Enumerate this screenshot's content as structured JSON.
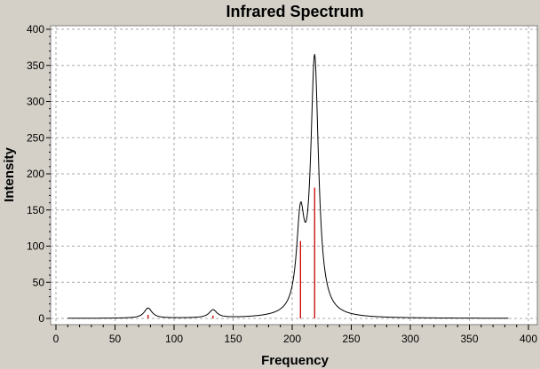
{
  "chart_data": {
    "type": "line",
    "title": "Infrared Spectrum",
    "xlabel": "Frequency",
    "ylabel": "Intensity",
    "xlim": [
      0,
      400
    ],
    "ylim": [
      0,
      400
    ],
    "xticks": [
      0,
      50,
      100,
      150,
      200,
      250,
      300,
      350,
      400
    ],
    "yticks": [
      0,
      50,
      100,
      150,
      200,
      250,
      300,
      350,
      400
    ],
    "grid": true,
    "legend": "none",
    "colors": {
      "curve": "#000000",
      "sticks": "#cc0000",
      "plot_bg": "#ffffff",
      "frame_bg": "#d4d0c8",
      "grid": "#aaaaaa"
    },
    "x_range": [
      10,
      383
    ],
    "series": [
      {
        "kind": "stick",
        "x": [
          78,
          133,
          207,
          219
        ],
        "y": [
          5,
          4,
          107,
          181
        ]
      }
    ],
    "curve_peaks": [
      {
        "x": 78,
        "height": 14,
        "width": 8
      },
      {
        "x": 133,
        "height": 11,
        "width": 8
      },
      {
        "x": 207,
        "height": 125,
        "width": 8
      },
      {
        "x": 219,
        "height": 353,
        "width": 8
      }
    ]
  }
}
